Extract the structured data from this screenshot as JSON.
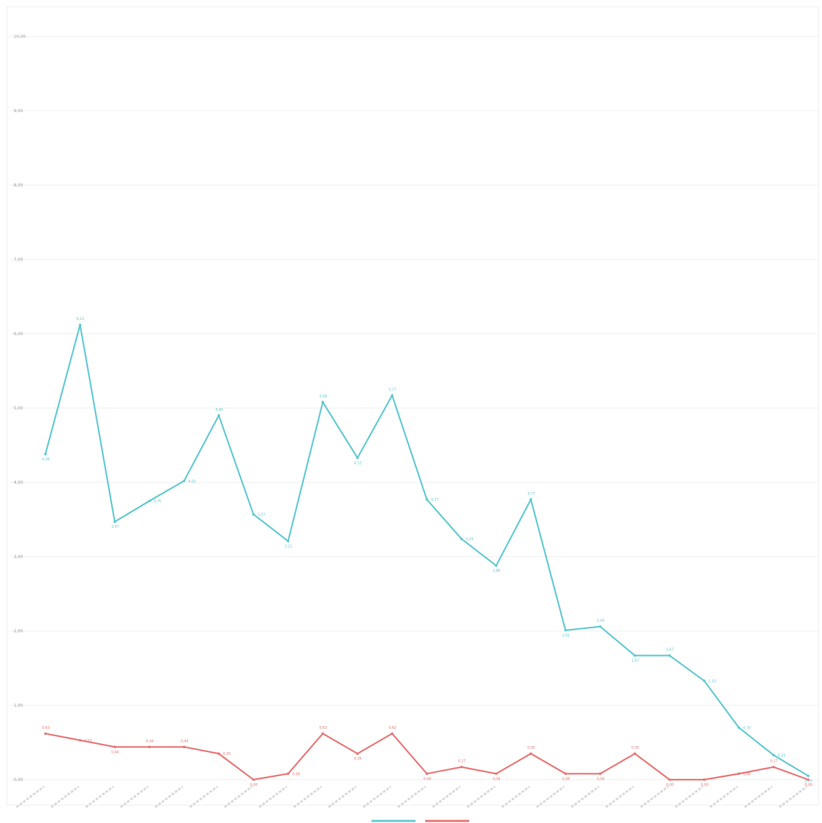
{
  "chart_data": {
    "type": "line",
    "title": "",
    "xlabel": "",
    "ylabel": "",
    "ylim": [
      0,
      10
    ],
    "yticks": [
      "0,00",
      "1,00",
      "2,00",
      "3,00",
      "4,00",
      "5,00",
      "6,00",
      "7,00",
      "8,00",
      "9,00",
      "10,00"
    ],
    "grid": true,
    "legend": "bottom",
    "x": [
      1,
      2,
      3,
      4,
      5,
      6,
      7,
      8,
      9,
      10,
      11,
      12,
      13,
      14,
      15,
      16,
      17,
      18,
      19,
      20,
      21,
      22,
      23
    ],
    "series": [
      {
        "color": "#5bc8d0",
        "values": [
          4.38,
          6.12,
          3.47,
          3.75,
          4.02,
          4.9,
          3.57,
          3.21,
          5.08,
          4.33,
          5.17,
          3.77,
          3.24,
          2.88,
          3.77,
          2.01,
          2.06,
          1.67,
          1.67,
          1.33,
          0.7,
          0.33,
          0.05
        ],
        "labels": [
          "4,38",
          "6,12",
          "3,47",
          "3,75",
          "4,02",
          "4,90",
          "3,57",
          "3,21",
          "5,08",
          "4,33",
          "5,17",
          "3,77",
          "3,24",
          "2,88",
          "3,77",
          "2,01",
          "2,06",
          "1,67",
          "1,67",
          "1,33",
          "0,70",
          "0,33",
          "0,05"
        ]
      },
      {
        "color": "#e97070",
        "values": [
          0.62,
          0.53,
          0.44,
          0.44,
          0.44,
          0.35,
          0.0,
          0.08,
          0.62,
          0.35,
          0.62,
          0.08,
          0.17,
          0.08,
          0.35,
          0.08,
          0.08,
          0.35,
          0.0,
          0.0,
          0.08,
          0.17,
          0.0
        ],
        "labels": [
          "0,62",
          "0,53",
          "0,44",
          "0,44",
          "0,44",
          "0,35",
          "0,00",
          "0,08",
          "0,62",
          "0,35",
          "0,62",
          "0,08",
          "0,17",
          "0,08",
          "0,35",
          "0,08",
          "0,08",
          "0,35",
          "0,00",
          "0,00",
          "0,08",
          "0,17",
          "0,00"
        ]
      }
    ]
  }
}
